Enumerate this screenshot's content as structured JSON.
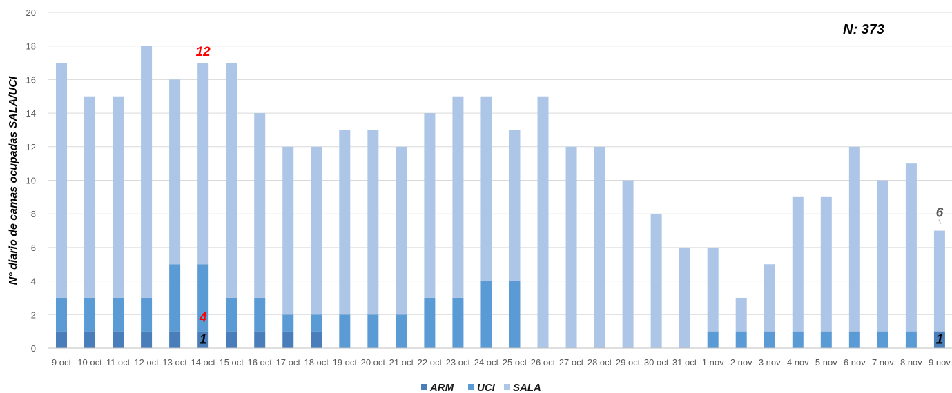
{
  "chart_data": {
    "type": "bar",
    "stacked": true,
    "ylabel": "N° diario de camas ocupadas SALA/UCI",
    "ylim": [
      0,
      20
    ],
    "yticks": [
      0,
      2,
      4,
      6,
      8,
      10,
      12,
      14,
      16,
      18,
      20
    ],
    "grid": true,
    "legend_position": "bottom",
    "total_label": "N: 373",
    "categories": [
      "9 oct",
      "10 oct",
      "11 oct",
      "12 oct",
      "13 oct",
      "14 oct",
      "15 oct",
      "16 oct",
      "17 oct",
      "18 oct",
      "19 oct",
      "20 oct",
      "21 oct",
      "22 oct",
      "23 oct",
      "24 oct",
      "25 oct",
      "26 oct",
      "27 oct",
      "28 oct",
      "29 oct",
      "30 oct",
      "31 oct",
      "1 nov",
      "2 nov",
      "3 nov",
      "4 nov",
      "5 nov",
      "6 nov",
      "7 nov",
      "8 nov",
      "9 nov"
    ],
    "series": [
      {
        "name": "ARM",
        "color": "#4a7ebb",
        "values": [
          1,
          1,
          1,
          1,
          1,
          1,
          1,
          1,
          1,
          1,
          0,
          0,
          0,
          0,
          0,
          0,
          0,
          0,
          0,
          0,
          0,
          0,
          0,
          0,
          0,
          0,
          0,
          0,
          0,
          0,
          0,
          1
        ]
      },
      {
        "name": "UCI",
        "color": "#5b9bd5",
        "values": [
          2,
          2,
          2,
          2,
          4,
          4,
          2,
          2,
          1,
          1,
          2,
          2,
          2,
          3,
          3,
          4,
          4,
          0,
          0,
          0,
          0,
          0,
          0,
          1,
          1,
          1,
          1,
          1,
          1,
          1,
          1,
          0
        ]
      },
      {
        "name": "SALA",
        "color": "#adc5e7",
        "values": [
          14,
          12,
          12,
          15,
          11,
          12,
          14,
          11,
          10,
          10,
          11,
          11,
          10,
          11,
          12,
          11,
          9,
          15,
          12,
          12,
          10,
          8,
          6,
          5,
          2,
          4,
          8,
          8,
          11,
          9,
          10,
          6
        ]
      }
    ],
    "annotations": [
      {
        "text": "12",
        "category": "14 oct",
        "series": "SALA",
        "color": "#ff0000"
      },
      {
        "text": "4",
        "category": "14 oct",
        "series": "UCI",
        "color": "#ff0000"
      },
      {
        "text": "1",
        "category": "14 oct",
        "series": "ARM",
        "color": "#000000"
      },
      {
        "text": "6",
        "category": "9 nov",
        "series": "SALA",
        "color": "#595959"
      },
      {
        "text": "1",
        "category": "9 nov",
        "series": "ARM",
        "color": "#000000"
      }
    ]
  }
}
